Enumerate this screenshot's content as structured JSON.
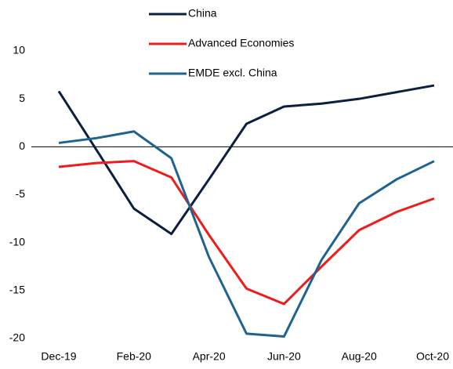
{
  "chart_data": {
    "type": "line",
    "categories": [
      "Dec-19",
      null,
      "Feb-20",
      null,
      "Apr-20",
      null,
      "Jun-20",
      null,
      "Aug-20",
      null,
      "Oct-20"
    ],
    "series": [
      {
        "name": "China",
        "color": "#0c1f3f",
        "values": [
          5.8,
          -0.3,
          -6.45,
          -9.1,
          -3.4,
          2.4,
          4.2,
          4.5,
          5.0,
          5.7,
          6.4
        ]
      },
      {
        "name": "Advanced Economies",
        "color": "#ee1c1c",
        "values": [
          -2.1,
          -1.7,
          -1.5,
          -3.2,
          -9.2,
          -14.8,
          -16.4,
          -12.5,
          -8.7,
          -6.8,
          -5.4
        ]
      },
      {
        "name": "EMDE excl. China",
        "color": "#1f6391",
        "values": [
          0.4,
          0.9,
          1.6,
          -1.2,
          -11.5,
          -19.5,
          -19.8,
          -11.8,
          -5.9,
          -3.4,
          -1.5
        ]
      }
    ],
    "ylim": [
      -20,
      10
    ],
    "yticks": [
      -20,
      -15,
      -10,
      -5,
      0,
      5,
      10
    ],
    "grid": false,
    "legend": "top"
  }
}
